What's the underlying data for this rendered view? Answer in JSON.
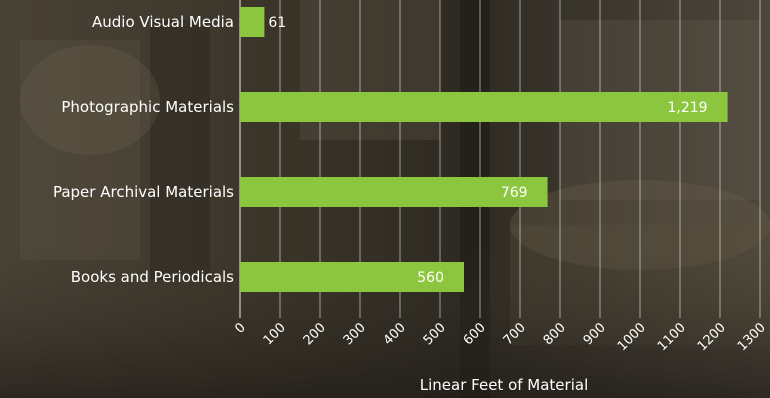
{
  "chart_data": {
    "type": "bar",
    "orientation": "horizontal",
    "categories": [
      "Audio Visual Media",
      "Photographic Materials",
      "Paper Archival Materials",
      "Books and Periodicals"
    ],
    "values": [
      61,
      1219,
      769,
      560
    ],
    "value_labels": [
      "61",
      "1,219",
      "769",
      "560"
    ],
    "xlabel": "Linear Feet of Material",
    "ylabel": "",
    "xlim": [
      0,
      1300
    ],
    "xticks": [
      0,
      100,
      200,
      300,
      400,
      500,
      600,
      700,
      800,
      900,
      1000,
      1100,
      1200,
      1300
    ],
    "grid": true,
    "colors": {
      "bar": "#8cc63f",
      "text": "#ffffff",
      "grid": "#ffffff"
    }
  }
}
